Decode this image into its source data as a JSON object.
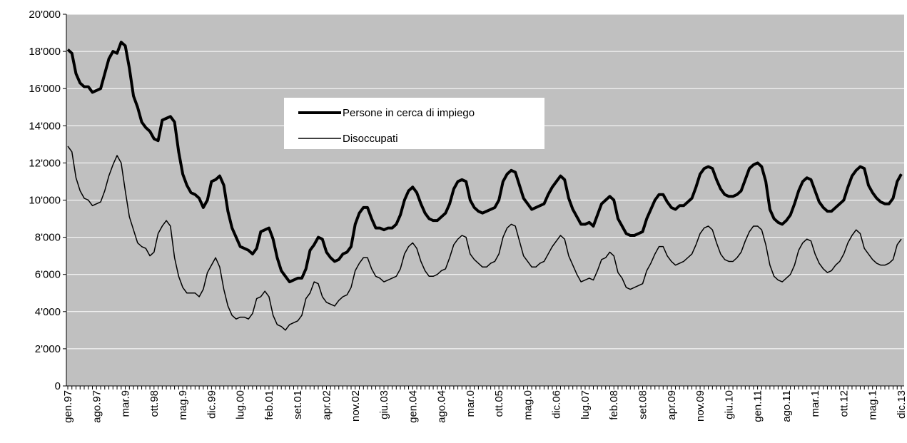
{
  "chart_data": {
    "type": "line",
    "categories": [
      "gen.97",
      null,
      null,
      null,
      null,
      null,
      null,
      "ago.97",
      null,
      null,
      null,
      null,
      null,
      null,
      "mar.9",
      null,
      null,
      null,
      null,
      null,
      null,
      "ott.98",
      null,
      null,
      null,
      null,
      null,
      null,
      "mag.9",
      null,
      null,
      null,
      null,
      null,
      null,
      "dic.99",
      null,
      null,
      null,
      null,
      null,
      null,
      "lug.00",
      null,
      null,
      null,
      null,
      null,
      null,
      "feb.01",
      null,
      null,
      null,
      null,
      null,
      null,
      "set.01",
      null,
      null,
      null,
      null,
      null,
      null,
      "apr.02",
      null,
      null,
      null,
      null,
      null,
      null,
      "nov.02",
      null,
      null,
      null,
      null,
      null,
      null,
      "giu.03",
      null,
      null,
      null,
      null,
      null,
      null,
      "gen.04",
      null,
      null,
      null,
      null,
      null,
      null,
      "ago.04",
      null,
      null,
      null,
      null,
      null,
      null,
      "mar.0",
      null,
      null,
      null,
      null,
      null,
      null,
      "ott.05",
      null,
      null,
      null,
      null,
      null,
      null,
      "mag.0",
      null,
      null,
      null,
      null,
      null,
      null,
      "dic.06",
      null,
      null,
      null,
      null,
      null,
      null,
      "lug.07",
      null,
      null,
      null,
      null,
      null,
      null,
      "feb.08",
      null,
      null,
      null,
      null,
      null,
      null,
      "set.08",
      null,
      null,
      null,
      null,
      null,
      null,
      "apr.09",
      null,
      null,
      null,
      null,
      null,
      null,
      "nov.09",
      null,
      null,
      null,
      null,
      null,
      null,
      "giu.10",
      null,
      null,
      null,
      null,
      null,
      null,
      "gen.11",
      null,
      null,
      null,
      null,
      null,
      null,
      "ago.11",
      null,
      null,
      null,
      null,
      null,
      null,
      "mar.1",
      null,
      null,
      null,
      null,
      null,
      null,
      "ott.12",
      null,
      null,
      null,
      null,
      null,
      null,
      "mag.1",
      null,
      null,
      null,
      null,
      null,
      null,
      "dic.13"
    ],
    "series": [
      {
        "name": "Persone in cerca di impiego",
        "color": "#000000",
        "width": 4,
        "values": [
          18100,
          17900,
          16800,
          16300,
          16100,
          16100,
          15800,
          15900,
          16000,
          16800,
          17600,
          18000,
          17900,
          18500,
          18300,
          17100,
          15600,
          15000,
          14200,
          13900,
          13700,
          13300,
          13200,
          14300,
          14400,
          14500,
          14200,
          12600,
          11400,
          10800,
          10400,
          10300,
          10100,
          9600,
          10000,
          11000,
          11100,
          11300,
          10800,
          9400,
          8500,
          8000,
          7500,
          7400,
          7300,
          7100,
          7400,
          8300,
          8400,
          8500,
          7900,
          6900,
          6200,
          5900,
          5600,
          5700,
          5800,
          5800,
          6300,
          7300,
          7600,
          8000,
          7900,
          7200,
          6900,
          6700,
          6800,
          7100,
          7200,
          7500,
          8700,
          9300,
          9600,
          9600,
          9000,
          8500,
          8500,
          8400,
          8500,
          8500,
          8700,
          9200,
          10000,
          10500,
          10700,
          10400,
          9800,
          9300,
          9000,
          8900,
          8900,
          9100,
          9300,
          9800,
          10600,
          11000,
          11100,
          11000,
          10000,
          9600,
          9400,
          9300,
          9400,
          9500,
          9600,
          10000,
          11000,
          11400,
          11600,
          11500,
          10800,
          10100,
          9800,
          9500,
          9600,
          9700,
          9800,
          10300,
          10700,
          11000,
          11300,
          11100,
          10100,
          9500,
          9100,
          8700,
          8700,
          8800,
          8600,
          9200,
          9800,
          10000,
          10200,
          10000,
          9000,
          8600,
          8200,
          8100,
          8100,
          8200,
          8300,
          9000,
          9500,
          10000,
          10300,
          10300,
          9900,
          9600,
          9500,
          9700,
          9700,
          9900,
          10100,
          10700,
          11400,
          11700,
          11800,
          11700,
          11100,
          10600,
          10300,
          10200,
          10200,
          10300,
          10500,
          11100,
          11700,
          11900,
          12000,
          11800,
          11000,
          9500,
          9000,
          8800,
          8700,
          8900,
          9200,
          9800,
          10500,
          11000,
          11200,
          11100,
          10500,
          9900,
          9600,
          9400,
          9400,
          9600,
          9800,
          10000,
          10700,
          11300,
          11600,
          11800,
          11700,
          10800,
          10400,
          10100,
          9900,
          9800,
          9800,
          10100,
          11000,
          11400
        ]
      },
      {
        "name": "Disoccupati",
        "color": "#000000",
        "width": 1.5,
        "values": [
          12900,
          12600,
          11200,
          10500,
          10100,
          10000,
          9700,
          9800,
          9900,
          10500,
          11300,
          11900,
          12400,
          12000,
          10500,
          9100,
          8400,
          7700,
          7500,
          7400,
          7000,
          7200,
          8200,
          8600,
          8900,
          8600,
          6900,
          5900,
          5300,
          5000,
          5000,
          5000,
          4800,
          5200,
          6100,
          6500,
          6900,
          6400,
          5200,
          4300,
          3800,
          3600,
          3700,
          3700,
          3600,
          3900,
          4700,
          4800,
          5100,
          4800,
          3800,
          3300,
          3200,
          3000,
          3300,
          3400,
          3500,
          3800,
          4700,
          5000,
          5600,
          5500,
          4800,
          4500,
          4400,
          4300,
          4600,
          4800,
          4900,
          5300,
          6200,
          6600,
          6900,
          6900,
          6300,
          5900,
          5800,
          5600,
          5700,
          5800,
          5900,
          6300,
          7100,
          7500,
          7700,
          7400,
          6700,
          6200,
          5900,
          5900,
          6000,
          6200,
          6300,
          6900,
          7600,
          7900,
          8100,
          8000,
          7100,
          6800,
          6600,
          6400,
          6400,
          6600,
          6700,
          7100,
          8000,
          8500,
          8700,
          8600,
          7800,
          7000,
          6700,
          6400,
          6400,
          6600,
          6700,
          7100,
          7500,
          7800,
          8100,
          7900,
          7000,
          6500,
          6000,
          5600,
          5700,
          5800,
          5700,
          6200,
          6800,
          6900,
          7200,
          7000,
          6100,
          5800,
          5300,
          5200,
          5300,
          5400,
          5500,
          6200,
          6600,
          7100,
          7500,
          7500,
          7000,
          6700,
          6500,
          6600,
          6700,
          6900,
          7100,
          7600,
          8200,
          8500,
          8600,
          8400,
          7700,
          7100,
          6800,
          6700,
          6700,
          6900,
          7200,
          7800,
          8300,
          8600,
          8600,
          8400,
          7600,
          6500,
          5900,
          5700,
          5600,
          5800,
          6000,
          6500,
          7300,
          7700,
          7900,
          7800,
          7100,
          6600,
          6300,
          6100,
          6200,
          6500,
          6700,
          7100,
          7700,
          8100,
          8400,
          8200,
          7400,
          7100,
          6800,
          6600,
          6500,
          6500,
          6600,
          6800,
          7600,
          7900
        ]
      }
    ],
    "ylim": [
      0,
      20000
    ],
    "yticks": [
      0,
      {
        "value": 2000,
        "label": "2'000"
      },
      {
        "value": 4000,
        "label": "4'000"
      },
      {
        "value": 6000,
        "label": "6'000"
      },
      {
        "value": 8000,
        "label": "8'000"
      },
      {
        "value": 10000,
        "label": "10'000"
      },
      {
        "value": 12000,
        "label": "12'000"
      },
      {
        "value": 14000,
        "label": "14'000"
      },
      {
        "value": 16000,
        "label": "16'000"
      },
      {
        "value": 18000,
        "label": "18'000"
      },
      {
        "value": 20000,
        "label": "20'000"
      }
    ],
    "grid": true,
    "plot_background": "#c0c0c0"
  }
}
